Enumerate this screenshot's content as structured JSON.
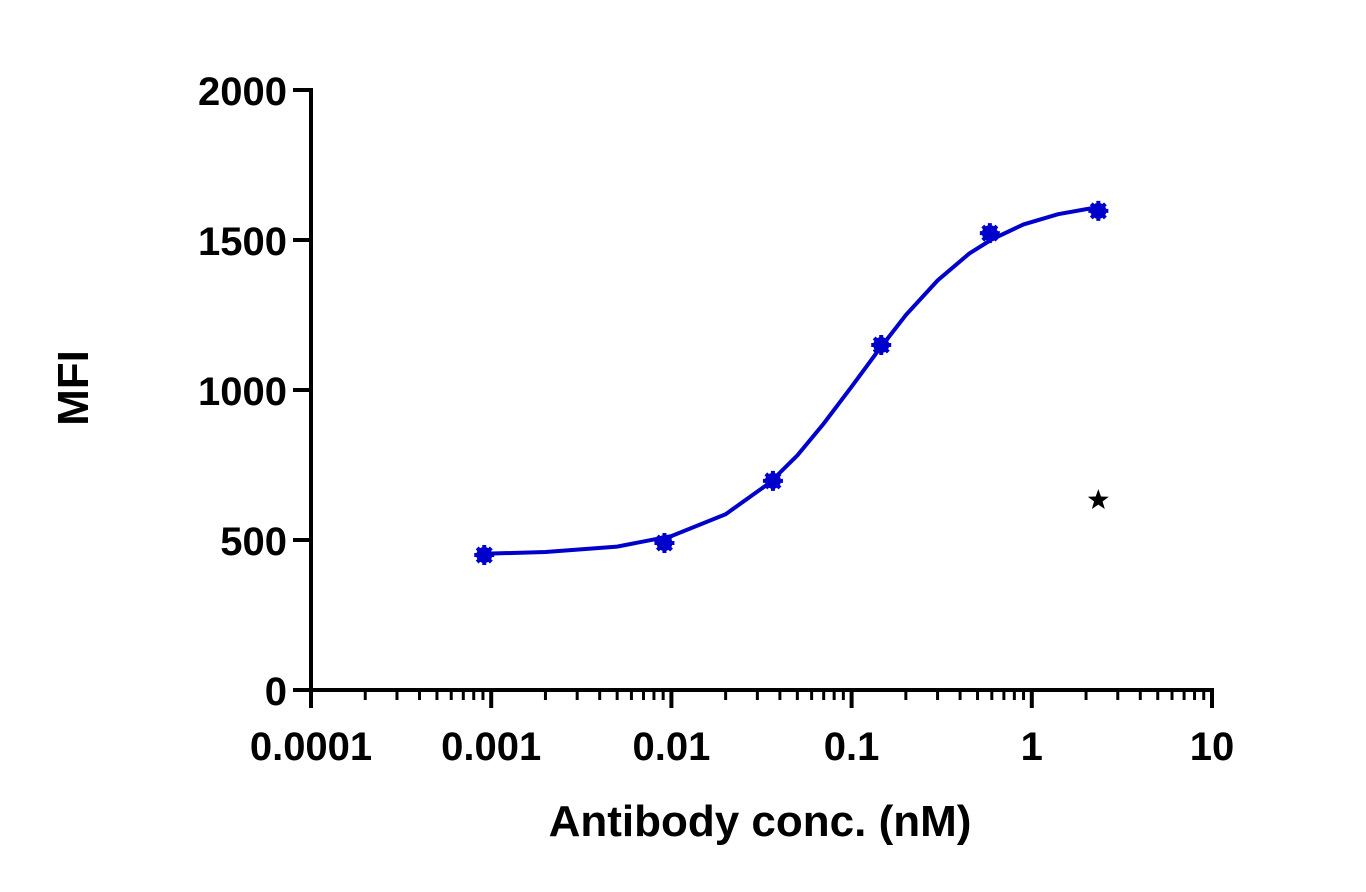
{
  "chart_data": {
    "type": "scatter",
    "x_label": "Antibody conc. (nM)",
    "y_label": "MFI",
    "xscale": "log",
    "xlim": [
      0.0001,
      10
    ],
    "xticks": [
      0.0001,
      0.001,
      0.01,
      0.1,
      1,
      10
    ],
    "xminor_ticks": [
      0.0002,
      0.0003,
      0.0004,
      0.0005,
      0.0006,
      0.0007,
      0.0008,
      0.0009,
      0.002,
      0.003,
      0.004,
      0.005,
      0.006,
      0.007,
      0.008,
      0.009,
      0.02,
      0.03,
      0.04,
      0.05,
      0.06,
      0.07,
      0.08,
      0.09,
      0.2,
      0.3,
      0.4,
      0.5,
      0.6,
      0.7,
      0.8,
      0.9,
      2,
      3,
      4,
      5,
      6,
      7,
      8,
      9
    ],
    "ylim": [
      0,
      2000
    ],
    "yticks": [
      0,
      500,
      1000,
      1500,
      2000
    ],
    "grid": false,
    "series": [
      {
        "color": "#0000cd",
        "marker": "asterisk",
        "x": [
          0.000915,
          0.00915,
          0.0366,
          0.146,
          0.585,
          2.34
        ],
        "values": [
          450,
          490,
          697,
          1150,
          1523,
          1597
        ]
      },
      {
        "color": "#0000cd",
        "style": "line",
        "x": [
          0.0009,
          0.002,
          0.005,
          0.01,
          0.02,
          0.035,
          0.05,
          0.07,
          0.1,
          0.14,
          0.2,
          0.3,
          0.45,
          0.6,
          0.9,
          1.4,
          2.34
        ],
        "values": [
          454,
          460,
          478,
          513,
          586,
          690,
          782,
          888,
          1011,
          1130,
          1250,
          1365,
          1455,
          1502,
          1552,
          1586,
          1610
        ]
      },
      {
        "color": "#000000",
        "marker": "star",
        "x": [
          2.34
        ],
        "values": [
          633
        ]
      }
    ]
  }
}
